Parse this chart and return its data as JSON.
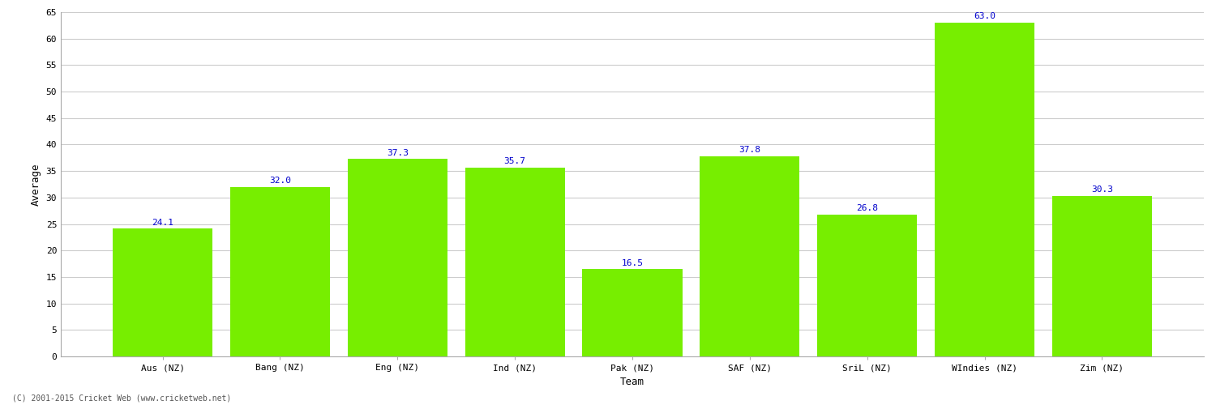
{
  "categories": [
    "Aus (NZ)",
    "Bang (NZ)",
    "Eng (NZ)",
    "Ind (NZ)",
    "Pak (NZ)",
    "SAF (NZ)",
    "SriL (NZ)",
    "WIndies (NZ)",
    "Zim (NZ)"
  ],
  "values": [
    24.1,
    32.0,
    37.3,
    35.7,
    16.5,
    37.8,
    26.8,
    63.0,
    30.3
  ],
  "bar_color": "#77ee00",
  "bar_edge_color": "#77ee00",
  "xlabel": "Team",
  "ylabel": "Average",
  "ylim": [
    0,
    65
  ],
  "yticks": [
    0,
    5,
    10,
    15,
    20,
    25,
    30,
    35,
    40,
    45,
    50,
    55,
    60,
    65
  ],
  "label_color": "#0000cc",
  "label_fontsize": 8,
  "axis_label_fontsize": 9,
  "tick_fontsize": 8,
  "background_color": "#ffffff",
  "grid_color": "#cccccc",
  "copyright_text": "(C) 2001-2015 Cricket Web (www.cricketweb.net)"
}
